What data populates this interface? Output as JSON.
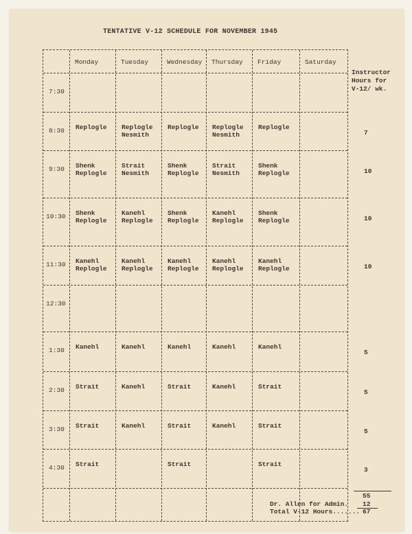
{
  "title": "TENTATIVE V-12 SCHEDULE FOR NOVEMBER 1945",
  "days": [
    "Monday",
    "Tuesday",
    "Wednesday",
    "Thursday",
    "Friday",
    "Saturday"
  ],
  "instructor_header": [
    "Instructor",
    "Hours for",
    "V-12/ wk."
  ],
  "rows": [
    {
      "time": "7:30",
      "cells": [
        "",
        "",
        "",
        "",
        "",
        ""
      ],
      "hours": ""
    },
    {
      "time": "8:30",
      "cells": [
        "Replogle",
        "Replogle\nNesmith",
        "Replogle",
        "Replogle\nNesmith",
        "Replogle",
        ""
      ],
      "hours": "7"
    },
    {
      "time": "9:30",
      "cells": [
        "Shenk\nReplogle",
        "Strait\nNesmith",
        "Shenk\nReplogle",
        "Strait\nNesmith",
        "Shenk\nReplogle",
        ""
      ],
      "hours": "10"
    },
    {
      "time": "10:30",
      "cells": [
        "Shenk\nReplogle",
        "Kanehl\nReplogle",
        "Shenk\nReplogle",
        "Kanehl\nReplogle",
        "Shenk\nReplogle",
        ""
      ],
      "hours": "10"
    },
    {
      "time": "11:30",
      "cells": [
        "Kanehl\nReplogle",
        "Kanehl\nReplogle",
        "Kanehl\nReplogle",
        "Kanehl\nReplogle",
        "Kanehl\nReplogle",
        ""
      ],
      "hours": "10"
    },
    {
      "time": "12:30",
      "cells": [
        "",
        "",
        "",
        "",
        "",
        ""
      ],
      "hours": ""
    },
    {
      "time": "1:30",
      "cells": [
        "Kanehl",
        "Kanehl",
        "Kanehl",
        "Kanehl",
        "Kanehl",
        ""
      ],
      "hours": "5"
    },
    {
      "time": "2:30",
      "cells": [
        "Strait",
        "Kanehl",
        "Strait",
        "Kanehl",
        "Strait",
        ""
      ],
      "hours": "5"
    },
    {
      "time": "3:30",
      "cells": [
        "Strait",
        "Kanehl",
        "Strait",
        "Kanehl",
        "Strait",
        ""
      ],
      "hours": "5"
    },
    {
      "time": "4:30",
      "cells": [
        "Strait",
        "",
        "Strait",
        "",
        "Strait",
        ""
      ],
      "hours": "3"
    }
  ],
  "totals": {
    "subtotal": "55",
    "admin_label": "Dr. Allen for Admin.",
    "admin_hours": "12",
    "total_label": "Total V-12 Hours.......",
    "total_hours": "67"
  }
}
